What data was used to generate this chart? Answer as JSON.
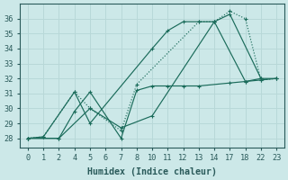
{
  "xlabel": "Humidex (Indice chaleur)",
  "bg_color": "#cce8e8",
  "grid_color": "#b8d8d8",
  "line_color": "#1a6b5a",
  "xtick_labels": [
    "0",
    "1",
    "2",
    "4",
    "5",
    "6",
    "7",
    "8",
    "10",
    "11",
    "12",
    "13",
    "14",
    "17",
    "18",
    "22",
    "23"
  ],
  "ytick_positions": [
    28,
    29,
    30,
    31,
    32,
    33,
    34,
    35,
    36
  ],
  "num_xticks": 17,
  "ylim": [
    27.4,
    37.0
  ],
  "lines": [
    {
      "xi": [
        0,
        1,
        3,
        4,
        8,
        9,
        10,
        11,
        12,
        13,
        15,
        16
      ],
      "y": [
        28.0,
        28.1,
        31.1,
        29.0,
        34.0,
        35.2,
        35.8,
        35.8,
        35.8,
        36.3,
        32.0,
        32.0
      ],
      "linestyle": "-",
      "marker": "+"
    },
    {
      "xi": [
        0,
        2,
        3,
        4,
        6,
        7,
        8,
        9,
        10,
        11,
        13,
        14,
        15,
        16
      ],
      "y": [
        28.0,
        28.0,
        29.8,
        31.1,
        28.0,
        31.2,
        31.5,
        31.5,
        31.5,
        31.5,
        31.7,
        31.8,
        31.9,
        32.0
      ],
      "linestyle": "-",
      "marker": "+"
    },
    {
      "xi": [
        0,
        1,
        3,
        4,
        6,
        7,
        11,
        12,
        13,
        14,
        15,
        16
      ],
      "y": [
        28.0,
        28.1,
        31.1,
        30.0,
        28.5,
        31.6,
        35.8,
        35.8,
        36.5,
        36.0,
        31.9,
        32.0
      ],
      "linestyle": ":",
      "marker": "+"
    },
    {
      "xi": [
        0,
        2,
        4,
        6,
        8,
        12,
        14,
        15
      ],
      "y": [
        28.0,
        28.0,
        30.0,
        28.7,
        29.5,
        35.8,
        31.8,
        32.0
      ],
      "linestyle": "-",
      "marker": "+"
    }
  ]
}
